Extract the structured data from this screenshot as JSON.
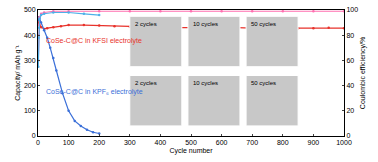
{
  "chart_data": {
    "type": "line",
    "xlabel": "Cycle number",
    "ylabel": "Capacity/ mAh g⁻¹",
    "y2label": "Coulombic efficiency/%",
    "xlim": [
      0,
      1000
    ],
    "xticks": [
      0,
      100,
      200,
      300,
      400,
      500,
      600,
      700,
      800,
      900,
      1000
    ],
    "ylim": [
      0,
      500
    ],
    "yticks": [
      0,
      100,
      200,
      300,
      400,
      500
    ],
    "y2lim": [
      0,
      100
    ],
    "y2ticks": [
      0,
      20,
      40,
      60,
      80,
      100
    ],
    "grid": false,
    "series": [
      {
        "color": "#e8322b",
        "marker": "circle",
        "x": [
          1,
          3,
          5,
          10,
          20,
          30,
          50,
          75,
          100,
          150,
          200,
          250,
          300,
          350,
          400,
          450,
          500,
          550,
          600,
          650,
          700,
          750,
          800,
          850,
          900,
          950,
          1000
        ],
        "values": [
          470,
          450,
          440,
          432,
          425,
          428,
          432,
          436,
          440,
          440,
          438,
          436,
          434,
          432,
          432,
          430,
          430,
          430,
          432,
          430,
          428,
          430,
          430,
          428,
          428,
          430,
          428
        ]
      },
      {
        "color": "#3a6fd8",
        "marker": "circle",
        "x": [
          1,
          3,
          5,
          10,
          20,
          30,
          40,
          50,
          60,
          80,
          100,
          120,
          140,
          160,
          180,
          200
        ],
        "values": [
          460,
          470,
          468,
          450,
          420,
          390,
          350,
          310,
          260,
          170,
          100,
          60,
          40,
          25,
          15,
          10
        ]
      },
      {
        "color": "#ff6fb0",
        "marker": "circle",
        "axis": "y2",
        "x": [
          1,
          2,
          3,
          5,
          10,
          20,
          50,
          100,
          200,
          300,
          400,
          500,
          600,
          700,
          800,
          900,
          1000
        ],
        "values": [
          60,
          80,
          88,
          94,
          97,
          98,
          99,
          99,
          99,
          99,
          99,
          99,
          99,
          99,
          99,
          99,
          99
        ]
      },
      {
        "color": "#4fb0e8",
        "marker": "circle",
        "axis": "y2",
        "x": [
          1,
          2,
          3,
          5,
          10,
          20,
          50,
          100,
          150,
          200
        ],
        "values": [
          55,
          78,
          86,
          93,
          96,
          97,
          98,
          98,
          97,
          96
        ]
      }
    ],
    "annotations": [
      {
        "text": "CoSe-C@C in KFSI electrolyte",
        "color": "#e8322b"
      },
      {
        "text": "CoSe-C@C in KPF₆ electrolyte",
        "color": "#3a6fd8"
      },
      {
        "text": "2 cycles",
        "color": "#000000"
      },
      {
        "text": "10 cycles",
        "color": "#000000"
      },
      {
        "text": "50 cycles",
        "color": "#000000"
      },
      {
        "text": "2 cycles",
        "color": "#000000"
      },
      {
        "text": "10 cycles",
        "color": "#000000"
      },
      {
        "text": "50 cycles",
        "color": "#000000"
      }
    ]
  }
}
